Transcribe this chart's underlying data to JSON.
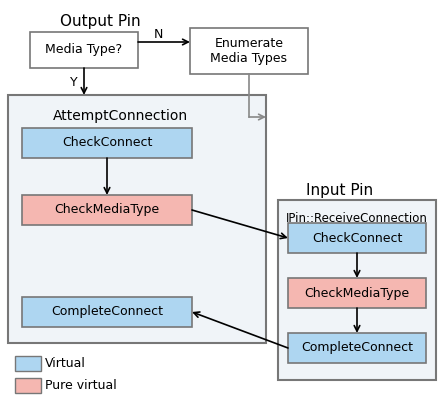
{
  "bg_color": "#ffffff",
  "virtual_color": "#aed6f1",
  "pure_virtual_color": "#f5b7b1",
  "box_border_color": "#777777",
  "output_pin_label": "Output Pin",
  "input_pin_label": "Input Pin",
  "attempt_connection_label": "AttemptConnection",
  "ipin_receive_label": "IPin::ReceiveConnection",
  "media_type_label": "Media Type?",
  "enumerate_label": "Enumerate\nMedia Types",
  "check_connect_left": "CheckConnect",
  "check_media_left": "CheckMediaType",
  "complete_connect_left": "CompleteConnect",
  "check_connect_right": "CheckConnect",
  "check_media_right": "CheckMediaType",
  "complete_connect_right": "CompleteConnect",
  "legend_virtual": "Virtual",
  "legend_pure": "Pure virtual"
}
